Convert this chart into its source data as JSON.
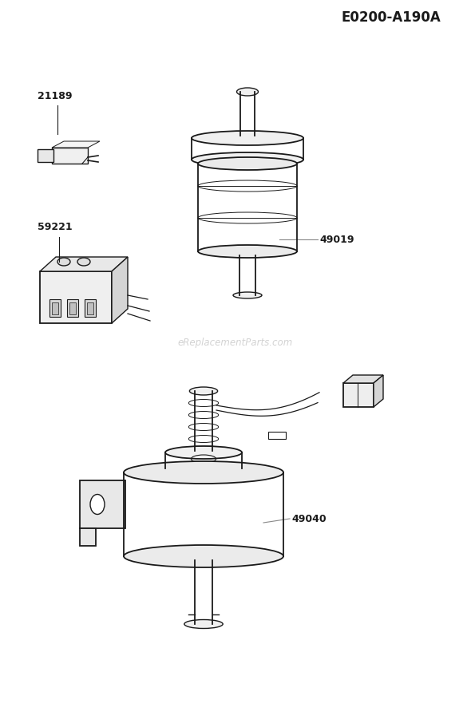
{
  "title": "E0200-A190A",
  "bg_color": "#ffffff",
  "line_color": "#1a1a1a",
  "label_color": "#111111",
  "watermark": "eReplacementParts.com",
  "watermark_color": "#cccccc",
  "label_21189": "21189",
  "label_59221": "59221",
  "label_49019": "49019",
  "label_49040": "49040"
}
